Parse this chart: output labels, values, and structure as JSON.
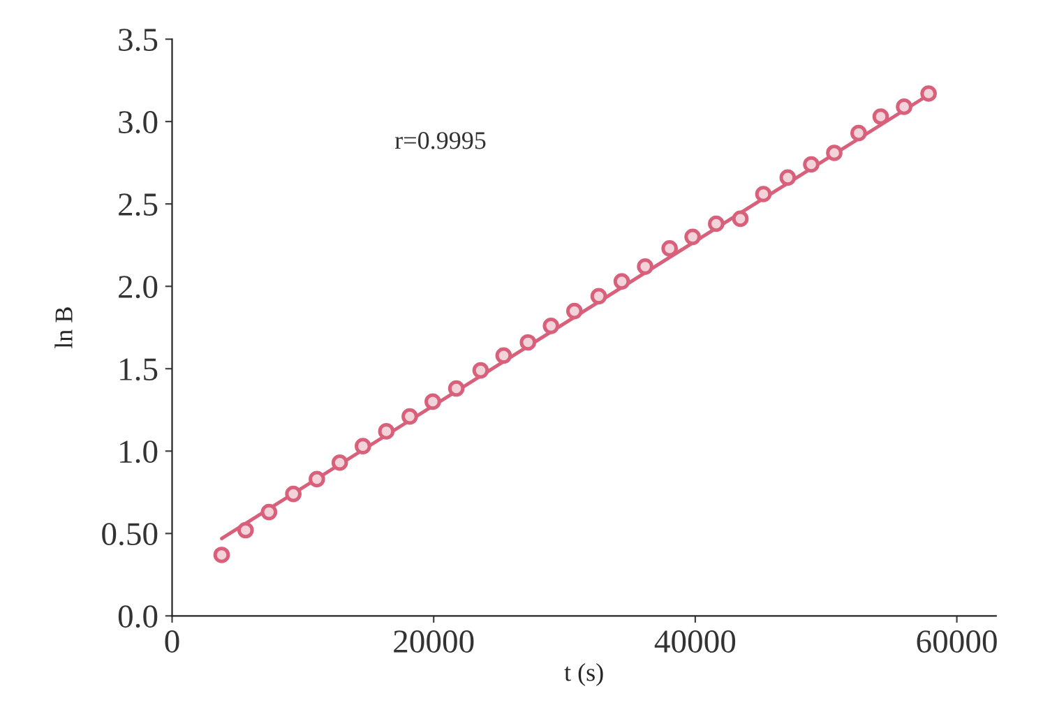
{
  "chart_data": {
    "type": "scatter",
    "xlabel": "t (s)",
    "ylabel": "ln B",
    "annotations": [
      "r=0.9995"
    ],
    "series": [
      {
        "color": "#d9607a",
        "marker": "circle",
        "x": [
          3790,
          5620,
          7410,
          9270,
          11070,
          12820,
          14590,
          16380,
          18170,
          19930,
          21730,
          23590,
          25350,
          27210,
          28970,
          30760,
          32620,
          34380,
          36170,
          38040,
          39800,
          41600,
          43450,
          45210,
          47070,
          48870,
          50630,
          52490,
          54180,
          55970,
          57840
        ],
        "values": [
          0.37,
          0.52,
          0.63,
          0.74,
          0.83,
          0.93,
          1.03,
          1.12,
          1.21,
          1.3,
          1.38,
          1.49,
          1.58,
          1.66,
          1.76,
          1.85,
          1.94,
          2.03,
          2.12,
          2.23,
          2.3,
          2.38,
          2.41,
          2.56,
          2.66,
          2.74,
          2.81,
          2.93,
          3.03,
          3.09,
          3.17
        ]
      },
      {
        "type": "line",
        "color": "#d9607a",
        "x": [
          3800,
          58000
        ],
        "values": [
          0.47,
          3.17
        ]
      }
    ],
    "xlim": [
      0,
      63000
    ],
    "ylim": [
      0,
      3.5
    ],
    "xticks": [
      0,
      20000,
      40000,
      60000
    ],
    "yticks": [
      {
        "value": 0,
        "label": "0.0"
      },
      {
        "value": 0.5,
        "label": "0.50"
      },
      {
        "value": 1,
        "label": "1.0"
      },
      {
        "value": 1.5,
        "label": "1.5"
      },
      {
        "value": 2,
        "label": "2.0"
      },
      {
        "value": 2.5,
        "label": "2.5"
      },
      {
        "value": 3,
        "label": "3.0"
      },
      {
        "value": 3.5,
        "label": "3.5"
      }
    ],
    "grid": false,
    "legend": false
  }
}
